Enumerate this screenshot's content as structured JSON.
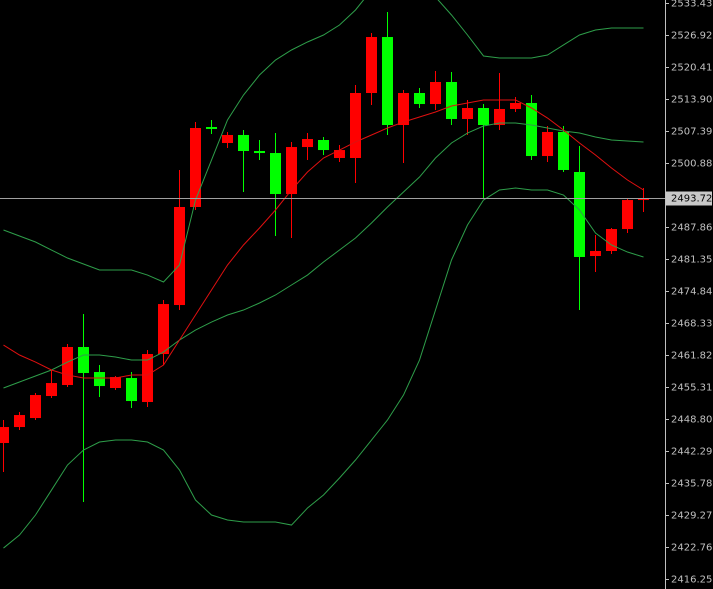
{
  "chart_data": {
    "type": "candlestick",
    "ylim": [
      2414.22,
      2534.04
    ],
    "yticks": [
      2533.43,
      2526.92,
      2520.41,
      {
        "value": 2513.9,
        "label": "2513.90"
      },
      2507.39,
      2500.88,
      2487.86,
      2481.35,
      2474.84,
      2468.33,
      2461.82,
      2455.31,
      {
        "value": 2448.8,
        "label": "2448.80"
      },
      2442.29,
      2435.78,
      2429.27,
      2422.76,
      2416.25
    ],
    "up_color": "#ff0000",
    "down_color": "#00ff00",
    "open": [
      2443.92,
      2447.17,
      2449.0,
      2453.48,
      2455.72,
      2463.45,
      2458.36,
      2455.11,
      2457.14,
      2452.26,
      2462.02,
      2471.99,
      2491.93,
      2508.2,
      2504.95,
      2506.58,
      2503.32,
      2502.91,
      2494.57,
      2504.13,
      2505.56,
      2501.9,
      2501.9,
      2515.12,
      2526.51,
      2508.61,
      2515.12,
      2512.88,
      2517.36,
      2509.83,
      2512.07,
      2508.61,
      2511.87,
      2513.09,
      2502.3,
      2507.19,
      2499.05,
      2481.96,
      2482.98,
      2487.45,
      2493.35
    ],
    "high": [
      2448.6,
      2450.22,
      2454.09,
      2458.77,
      2464.06,
      2470.16,
      2459.78,
      2457.55,
      2458.36,
      2462.84,
      2473.01,
      2499.46,
      2509.22,
      2509.63,
      2507.19,
      2507.59,
      2505.56,
      2506.98,
      2505.15,
      2506.98,
      2506.17,
      2504.54,
      2516.75,
      2527.33,
      2531.6,
      2515.73,
      2516.14,
      2519.6,
      2519.39,
      2513.7,
      2512.88,
      2519.19,
      2514.31,
      2514.71,
      2508.41,
      2508.41,
      2504.34,
      2486.23,
      2487.66,
      2493.76,
      2495.79
    ],
    "low": [
      2438.02,
      2446.56,
      2448.6,
      2453.07,
      2455.31,
      2431.91,
      2453.27,
      2454.7,
      2451.04,
      2451.24,
      2459.78,
      2470.97,
      2491.32,
      2506.78,
      2503.93,
      2494.98,
      2501.49,
      2486.03,
      2485.62,
      2501.49,
      2502.51,
      2501.08,
      2496.81,
      2512.68,
      2506.58,
      2500.88,
      2512.07,
      2511.66,
      2508.61,
      2506.58,
      2493.76,
      2507.59,
      2511.25,
      2501.49,
      2501.08,
      2499.05,
      2470.97,
      2478.7,
      2482.37,
      2486.64,
      2490.91
    ],
    "close": [
      2447.17,
      2449.61,
      2453.68,
      2456.12,
      2463.45,
      2458.16,
      2455.51,
      2457.34,
      2452.46,
      2462.02,
      2472.19,
      2491.93,
      2508.0,
      2507.8,
      2506.58,
      2503.32,
      2502.91,
      2494.57,
      2504.13,
      2505.76,
      2503.52,
      2503.52,
      2515.12,
      2526.51,
      2508.61,
      2515.12,
      2512.88,
      2517.36,
      2509.83,
      2512.07,
      2508.61,
      2511.87,
      2513.09,
      2502.3,
      2507.19,
      2499.46,
      2481.76,
      2482.98,
      2487.45,
      2493.35,
      2493.72
    ],
    "overlays": [
      {
        "color": "#2e9e4a",
        "values": [
          2487.25,
          2486.03,
          2484.81,
          2483.18,
          2481.55,
          2480.33,
          2479.11,
          2479.11,
          2479.11,
          2478.09,
          2476.67,
          2480.13,
          2493.35,
          2501.49,
          2509.63,
          2514.71,
          2518.78,
          2521.83,
          2523.87,
          2525.5,
          2526.92,
          2528.95,
          2532.01,
          2536.07,
          2537.09,
          2537.09,
          2536.07,
          2534.65,
          2530.99,
          2526.92,
          2522.65,
          2522.24,
          2522.24,
          2522.24,
          2522.85,
          2524.89,
          2526.92,
          2527.94,
          2528.34,
          2528.34,
          2528.34
        ]
      },
      {
        "color": "#2e9e4a",
        "values": [
          2455.11,
          2456.33,
          2457.55,
          2458.77,
          2460.39,
          2461.82,
          2461.82,
          2461.41,
          2460.8,
          2460.8,
          2462.43,
          2464.87,
          2466.9,
          2468.53,
          2469.96,
          2470.97,
          2472.4,
          2474.03,
          2476.06,
          2478.09,
          2480.74,
          2483.18,
          2485.62,
          2488.67,
          2491.93,
          2494.98,
          2498.03,
          2501.9,
          2504.95,
          2506.98,
          2508.41,
          2509.02,
          2509.02,
          2508.61,
          2508.0,
          2507.39,
          2506.98,
          2506.17,
          2505.56,
          2505.35,
          2505.15
        ]
      },
      {
        "color": "#2e9e4a",
        "values": [
          2422.55,
          2425.2,
          2429.27,
          2434.35,
          2439.44,
          2442.49,
          2444.12,
          2444.53,
          2444.53,
          2444.12,
          2442.49,
          2438.42,
          2432.32,
          2429.27,
          2428.25,
          2427.84,
          2427.84,
          2427.84,
          2427.23,
          2430.69,
          2433.34,
          2436.8,
          2440.46,
          2444.53,
          2448.6,
          2453.68,
          2460.8,
          2470.97,
          2481.15,
          2488.27,
          2493.35,
          2495.39,
          2495.79,
          2495.39,
          2495.39,
          2494.37,
          2491.32,
          2486.64,
          2484.2,
          2482.77,
          2481.76
        ]
      },
      {
        "color": "#e01010",
        "values": [
          2463.85,
          2461.82,
          2460.39,
          2458.77,
          2457.75,
          2457.14,
          2457.14,
          2457.14,
          2457.75,
          2457.75,
          2459.78,
          2464.87,
          2469.96,
          2475.04,
          2480.13,
          2484.2,
          2487.66,
          2491.32,
          2495.39,
          2499.05,
          2501.9,
          2503.52,
          2505.15,
          2506.58,
          2508.0,
          2509.22,
          2510.24,
          2511.25,
          2512.48,
          2513.09,
          2513.7,
          2513.7,
          2513.7,
          2512.07,
          2510.03,
          2507.59,
          2504.95,
          2502.51,
          2499.86,
          2497.42,
          2495.39
        ]
      }
    ],
    "last_price": 2493.72
  }
}
